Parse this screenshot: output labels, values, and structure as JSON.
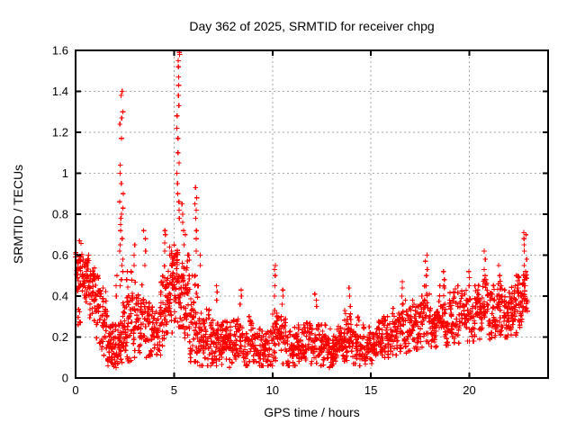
{
  "chart_data": {
    "type": "scatter",
    "title": "Day 362 of 2025, SRMTID for receiver chpg",
    "xlabel": "GPS time / hours",
    "ylabel": "SRMTID / TECUs",
    "xlim": [
      0,
      24
    ],
    "ylim": [
      0,
      1.6
    ],
    "xticks": [
      0,
      5,
      10,
      15,
      20
    ],
    "xtick_labels": [
      "0",
      "5",
      "10",
      "15",
      "20"
    ],
    "yticks": [
      0,
      0.2,
      0.4,
      0.6,
      0.8,
      1,
      1.2,
      1.4,
      1.6
    ],
    "ytick_labels": [
      "0",
      "0.2",
      "0.4",
      "0.6",
      "0.8",
      "1",
      "1.2",
      "1.4",
      "1.6"
    ],
    "grid": true,
    "legend": "none",
    "marker": {
      "shape": "plus",
      "color": "#ff0000",
      "size": 6
    },
    "axis_color": "#000000",
    "grid_color": "#a6a6a6",
    "data_span_hours": [
      0,
      22.95
    ],
    "peaks": [
      {
        "x": 2.3,
        "y_max": 1.4
      },
      {
        "x": 5.2,
        "y_max": 1.59
      },
      {
        "x": 22.85,
        "y_max": 0.71
      }
    ],
    "density_bands": [
      [
        0.0,
        0.35,
        0.4,
        0.67,
        40
      ],
      [
        0.02,
        0.3,
        0.25,
        0.4,
        8
      ],
      [
        0.35,
        0.7,
        0.34,
        0.6,
        36
      ],
      [
        0.7,
        1.0,
        0.28,
        0.55,
        32
      ],
      [
        1.0,
        1.3,
        0.17,
        0.5,
        32
      ],
      [
        1.3,
        1.6,
        0.1,
        0.44,
        32
      ],
      [
        1.6,
        1.9,
        0.06,
        0.28,
        36
      ],
      [
        1.9,
        2.2,
        0.05,
        0.26,
        40
      ],
      [
        2.2,
        2.5,
        0.06,
        0.38,
        36
      ],
      [
        2.5,
        2.8,
        0.08,
        0.45,
        32
      ],
      [
        2.8,
        3.1,
        0.1,
        0.52,
        32
      ],
      [
        3.1,
        3.4,
        0.1,
        0.5,
        32
      ],
      [
        3.4,
        3.7,
        0.1,
        0.46,
        32
      ],
      [
        3.7,
        4.0,
        0.08,
        0.38,
        32
      ],
      [
        4.0,
        4.3,
        0.1,
        0.42,
        32
      ],
      [
        4.3,
        4.6,
        0.15,
        0.55,
        34
      ],
      [
        4.6,
        4.9,
        0.22,
        0.62,
        38
      ],
      [
        4.9,
        5.2,
        0.28,
        0.72,
        42
      ],
      [
        5.2,
        5.5,
        0.25,
        0.7,
        38
      ],
      [
        5.5,
        5.8,
        0.15,
        0.6,
        34
      ],
      [
        5.8,
        6.1,
        0.08,
        0.5,
        34
      ],
      [
        6.1,
        6.4,
        0.06,
        0.45,
        34
      ],
      [
        6.4,
        6.8,
        0.06,
        0.35,
        38
      ],
      [
        6.8,
        7.2,
        0.06,
        0.33,
        40
      ],
      [
        7.2,
        7.6,
        0.06,
        0.3,
        40
      ],
      [
        7.6,
        8.0,
        0.05,
        0.28,
        40
      ],
      [
        8.0,
        8.4,
        0.06,
        0.32,
        40
      ],
      [
        8.4,
        8.8,
        0.06,
        0.3,
        40
      ],
      [
        8.8,
        9.2,
        0.08,
        0.28,
        40
      ],
      [
        9.2,
        9.6,
        0.06,
        0.25,
        40
      ],
      [
        9.6,
        10.0,
        0.06,
        0.28,
        40
      ],
      [
        10.0,
        10.4,
        0.08,
        0.33,
        40
      ],
      [
        10.4,
        10.8,
        0.07,
        0.3,
        40
      ],
      [
        10.8,
        11.2,
        0.06,
        0.26,
        40
      ],
      [
        11.2,
        11.6,
        0.07,
        0.26,
        40
      ],
      [
        11.6,
        12.0,
        0.07,
        0.28,
        40
      ],
      [
        12.0,
        12.4,
        0.07,
        0.3,
        40
      ],
      [
        12.4,
        12.8,
        0.06,
        0.26,
        40
      ],
      [
        12.8,
        13.2,
        0.05,
        0.24,
        40
      ],
      [
        13.2,
        13.6,
        0.06,
        0.26,
        40
      ],
      [
        13.6,
        14.0,
        0.07,
        0.33,
        40
      ],
      [
        14.0,
        14.4,
        0.07,
        0.3,
        40
      ],
      [
        14.4,
        14.8,
        0.06,
        0.26,
        40
      ],
      [
        14.8,
        15.2,
        0.07,
        0.25,
        40
      ],
      [
        15.2,
        15.6,
        0.09,
        0.28,
        40
      ],
      [
        15.6,
        16.0,
        0.1,
        0.3,
        40
      ],
      [
        16.0,
        16.4,
        0.11,
        0.34,
        40
      ],
      [
        16.4,
        16.8,
        0.12,
        0.38,
        40
      ],
      [
        16.8,
        17.2,
        0.13,
        0.38,
        40
      ],
      [
        17.2,
        17.6,
        0.14,
        0.4,
        40
      ],
      [
        17.6,
        18.0,
        0.15,
        0.45,
        40
      ],
      [
        18.0,
        18.4,
        0.15,
        0.4,
        40
      ],
      [
        18.4,
        18.8,
        0.16,
        0.45,
        40
      ],
      [
        18.8,
        19.2,
        0.16,
        0.42,
        40
      ],
      [
        19.2,
        19.6,
        0.17,
        0.45,
        40
      ],
      [
        19.6,
        20.0,
        0.18,
        0.48,
        40
      ],
      [
        20.0,
        20.4,
        0.18,
        0.45,
        40
      ],
      [
        20.4,
        20.8,
        0.19,
        0.5,
        40
      ],
      [
        20.8,
        21.2,
        0.19,
        0.48,
        40
      ],
      [
        21.2,
        21.6,
        0.2,
        0.5,
        40
      ],
      [
        21.6,
        22.0,
        0.2,
        0.45,
        40
      ],
      [
        22.0,
        22.4,
        0.21,
        0.45,
        40
      ],
      [
        22.4,
        22.7,
        0.24,
        0.5,
        30
      ],
      [
        22.7,
        22.95,
        0.28,
        0.55,
        24
      ]
    ],
    "spike_columns": [
      [
        2.32,
        0.1,
        [
          0.45,
          0.48,
          0.52,
          0.55,
          0.58,
          0.62,
          0.65,
          0.68,
          0.72,
          0.75,
          0.78,
          0.8,
          0.83,
          0.86,
          0.9,
          0.95,
          1.0,
          1.04,
          1.17,
          1.24,
          1.27,
          1.3,
          1.38,
          1.4
        ]
      ],
      [
        2.05,
        0.05,
        [
          0.4,
          0.45,
          0.5
        ]
      ],
      [
        2.6,
        0.05,
        [
          0.48,
          0.52
        ]
      ],
      [
        3.0,
        0.06,
        [
          0.55,
          0.6,
          0.65
        ]
      ],
      [
        3.5,
        0.06,
        [
          0.55,
          0.62,
          0.68,
          0.72
        ]
      ],
      [
        4.55,
        0.05,
        [
          0.62,
          0.66,
          0.7,
          0.72
        ]
      ],
      [
        4.75,
        0.05,
        [
          0.6,
          0.64
        ]
      ],
      [
        5.22,
        0.1,
        [
          0.78,
          0.82,
          0.86,
          0.9,
          0.95,
          1.0,
          1.05,
          1.1,
          1.17,
          1.22,
          1.28,
          1.33,
          1.38,
          1.43,
          1.47,
          1.52,
          1.55,
          1.58,
          1.59
        ]
      ],
      [
        5.45,
        0.06,
        [
          0.72,
          0.76,
          0.8,
          0.85
        ]
      ],
      [
        5.55,
        0.05,
        [
          0.65,
          0.7
        ]
      ],
      [
        6.1,
        0.07,
        [
          0.62,
          0.68,
          0.72,
          0.78,
          0.82,
          0.85,
          0.88,
          0.93
        ]
      ],
      [
        6.3,
        0.05,
        [
          0.55,
          0.6
        ]
      ],
      [
        7.2,
        0.05,
        [
          0.38,
          0.42,
          0.45
        ]
      ],
      [
        8.4,
        0.05,
        [
          0.36,
          0.4,
          0.43
        ]
      ],
      [
        10.15,
        0.06,
        [
          0.4,
          0.45,
          0.5,
          0.53,
          0.55
        ]
      ],
      [
        10.5,
        0.05,
        [
          0.36,
          0.4,
          0.43
        ]
      ],
      [
        12.2,
        0.05,
        [
          0.35,
          0.38,
          0.41
        ]
      ],
      [
        13.9,
        0.06,
        [
          0.35,
          0.4,
          0.44
        ]
      ],
      [
        16.6,
        0.05,
        [
          0.4,
          0.44,
          0.47
        ]
      ],
      [
        17.8,
        0.06,
        [
          0.45,
          0.5,
          0.53,
          0.57,
          0.6
        ]
      ],
      [
        18.7,
        0.05,
        [
          0.44,
          0.48,
          0.52
        ]
      ],
      [
        20.0,
        0.05,
        [
          0.45,
          0.49,
          0.52
        ]
      ],
      [
        20.8,
        0.06,
        [
          0.48,
          0.53,
          0.58,
          0.62
        ]
      ],
      [
        21.5,
        0.05,
        [
          0.46,
          0.5,
          0.55
        ]
      ],
      [
        22.85,
        0.08,
        [
          0.45,
          0.48,
          0.52,
          0.55,
          0.58,
          0.62,
          0.65,
          0.68,
          0.7,
          0.71
        ]
      ]
    ]
  }
}
